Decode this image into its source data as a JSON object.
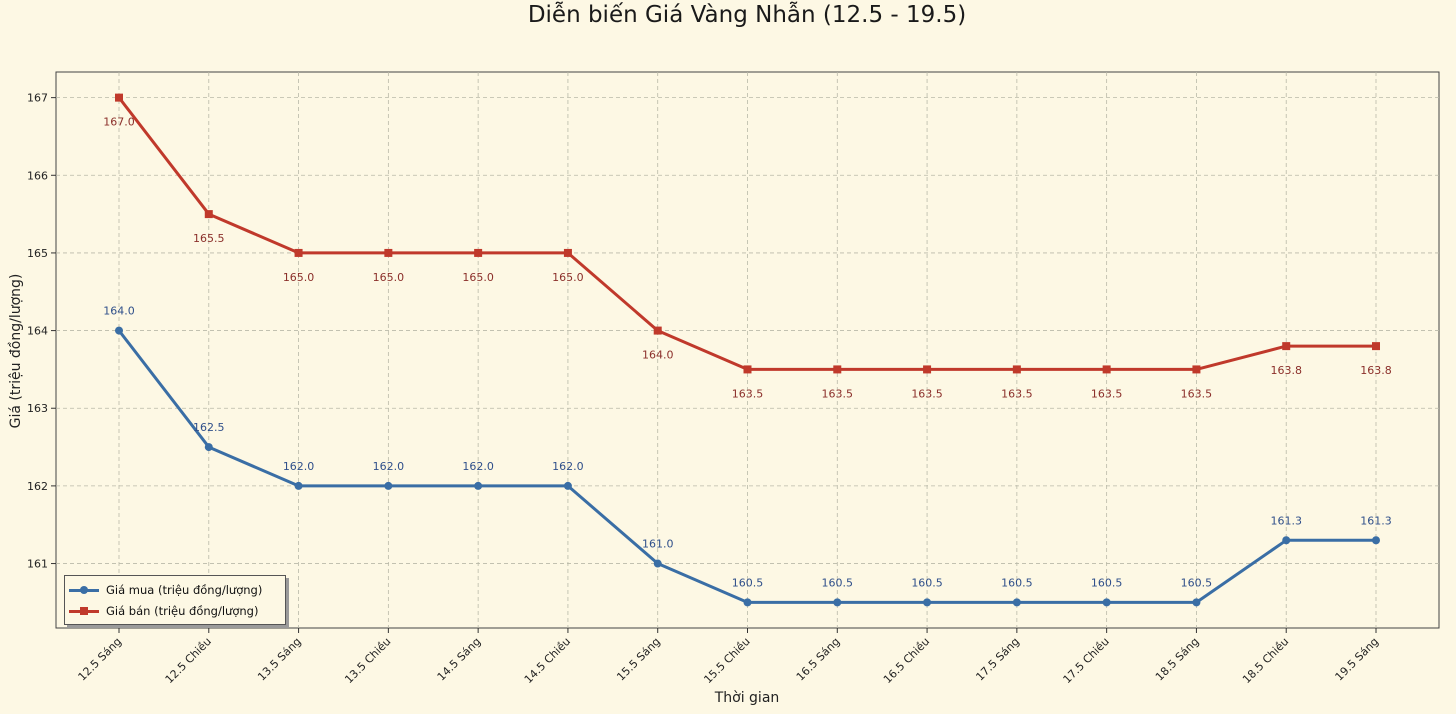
{
  "chart_data": {
    "type": "line",
    "title": "Diễn biến Giá Vàng Nhẫn (12.5 - 19.5)",
    "xlabel": "Thời gian",
    "ylabel": "Giá (triệu đồng/lượng)",
    "categories": [
      "12.5 Sáng",
      "12.5 Chiều",
      "13.5 Sáng",
      "13.5 Chiều",
      "14.5 Sáng",
      "14.5 Chiều",
      "15.5 Sáng",
      "15.5 Chiều",
      "16.5 Sáng",
      "16.5 Chiều",
      "17.5 Sáng",
      "17.5 Chiều",
      "18.5 Sáng",
      "18.5 Chiều",
      "19.5 Sáng"
    ],
    "ylim": [
      160.17,
      167.33
    ],
    "yticks": [
      161,
      162,
      163,
      164,
      165,
      166,
      167
    ],
    "grid": true,
    "legend_position": "lower-left",
    "series": [
      {
        "name": "Giá mua (triệu đồng/lượng)",
        "color": "#3a6ea5",
        "marker": "circle",
        "label_position": "above",
        "values": [
          164.0,
          162.5,
          162.0,
          162.0,
          162.0,
          162.0,
          161.0,
          160.5,
          160.5,
          160.5,
          160.5,
          160.5,
          160.5,
          161.3,
          161.3
        ],
        "labels": [
          "164.0",
          "162.5",
          "162.0",
          "162.0",
          "162.0",
          "162.0",
          "161.0",
          "160.5",
          "160.5",
          "160.5",
          "160.5",
          "160.5",
          "160.5",
          "161.3",
          "161.3"
        ]
      },
      {
        "name": "Giá bán (triệu đồng/lượng)",
        "color": "#c0392b",
        "marker": "square",
        "label_position": "below",
        "values": [
          167.0,
          165.5,
          165.0,
          165.0,
          165.0,
          165.0,
          164.0,
          163.5,
          163.5,
          163.5,
          163.5,
          163.5,
          163.5,
          163.8,
          163.8
        ],
        "labels": [
          "167.0",
          "165.5",
          "165.0",
          "165.0",
          "165.0",
          "165.0",
          "164.0",
          "163.5",
          "163.5",
          "163.5",
          "163.5",
          "163.5",
          "163.5",
          "163.8",
          "163.8"
        ]
      }
    ]
  },
  "colors": {
    "background": "#fdf8e4",
    "grid": "#b9b9a8",
    "axes": "#333333",
    "buy_label": "#2f4f8a",
    "sell_label": "#8b2f2a"
  }
}
